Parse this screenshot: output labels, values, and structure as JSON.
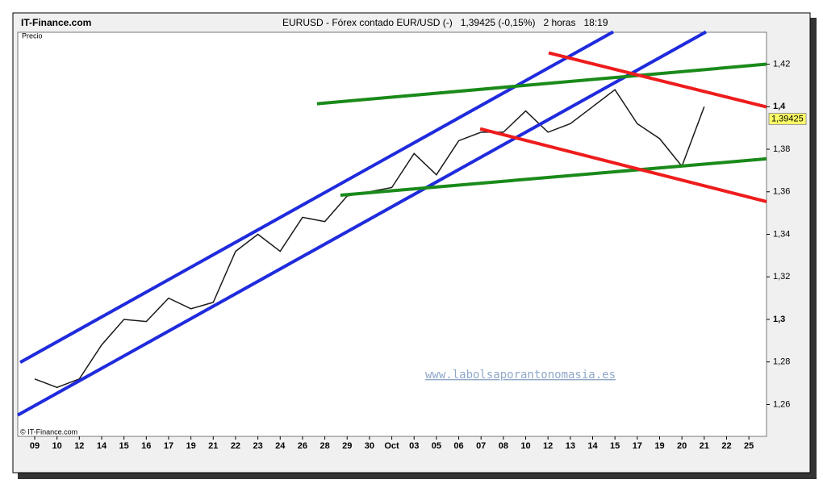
{
  "chart_data": {
    "type": "line",
    "site": "IT-Finance.com",
    "title": "EURUSD - Fórex contado EUR/USD (-)   1,39425 (-0,15%)   2 horas   18:19",
    "y_label": "Precio",
    "copyright": "© IT-Finance.com",
    "watermark": "www.labolsaporantonomasia.es",
    "categories": [
      "09",
      "10",
      "12",
      "14",
      "15",
      "16",
      "17",
      "19",
      "21",
      "22",
      "23",
      "24",
      "26",
      "28",
      "29",
      "30",
      {
        "label": "Oct",
        "bold": true
      },
      "03",
      "05",
      "06",
      "07",
      "08",
      "10",
      "12",
      "13",
      "14",
      "15",
      "17",
      "19",
      "20",
      "21",
      "22",
      "25"
    ],
    "series": [
      {
        "name": "EURUSD",
        "color": "#1a1a1a",
        "values": [
          1.272,
          1.268,
          1.272,
          1.288,
          1.3,
          1.299,
          1.31,
          1.305,
          1.308,
          1.332,
          1.34,
          1.332,
          1.348,
          1.346,
          1.358,
          1.36,
          1.362,
          1.378,
          1.368,
          1.384,
          1.388,
          1.388,
          1.398,
          1.388,
          1.392,
          1.4,
          1.408,
          1.392,
          1.385,
          1.372,
          1.4,
          null,
          null
        ]
      }
    ],
    "last": {
      "value": 1.39425,
      "label": "1,39425",
      "color": "#ffff66"
    },
    "ylim": [
      1.245,
      1.435
    ],
    "yticks": [
      {
        "value": 1.26,
        "label": "1,26"
      },
      {
        "value": 1.28,
        "label": "1,28"
      },
      {
        "value": 1.3,
        "label": "1,3",
        "bold": true
      },
      {
        "value": 1.32,
        "label": "1,32"
      },
      {
        "value": 1.34,
        "label": "1,34"
      },
      {
        "value": 1.36,
        "label": "1,36"
      },
      {
        "value": 1.38,
        "label": "1,38"
      },
      {
        "value": 1.4,
        "label": "1,4",
        "bold": true
      },
      {
        "value": 1.42,
        "label": "1,42"
      }
    ],
    "trendlines": [
      {
        "color": "#1f2bdc",
        "x": [
          -0.65,
          25.92
        ],
        "y": [
          1.2798,
          1.4352
        ]
      },
      {
        "color": "#1f2bdc",
        "x": [
          -0.76,
          30.08
        ],
        "y": [
          1.255,
          1.4352
        ]
      },
      {
        "color": "#1a8a1a",
        "x": [
          12.65,
          32.79
        ],
        "y": [
          1.4014,
          1.42
        ]
      },
      {
        "color": "#1a8a1a",
        "x": [
          13.7,
          32.79
        ],
        "y": [
          1.3584,
          1.3755
        ]
      },
      {
        "color": "#ee1c1c",
        "x": [
          23.03,
          32.79
        ],
        "y": [
          1.4253,
          1.3999
        ]
      },
      {
        "color": "#ee1c1c",
        "x": [
          19.96,
          32.79
        ],
        "y": [
          1.3896,
          1.3554
        ]
      }
    ]
  }
}
